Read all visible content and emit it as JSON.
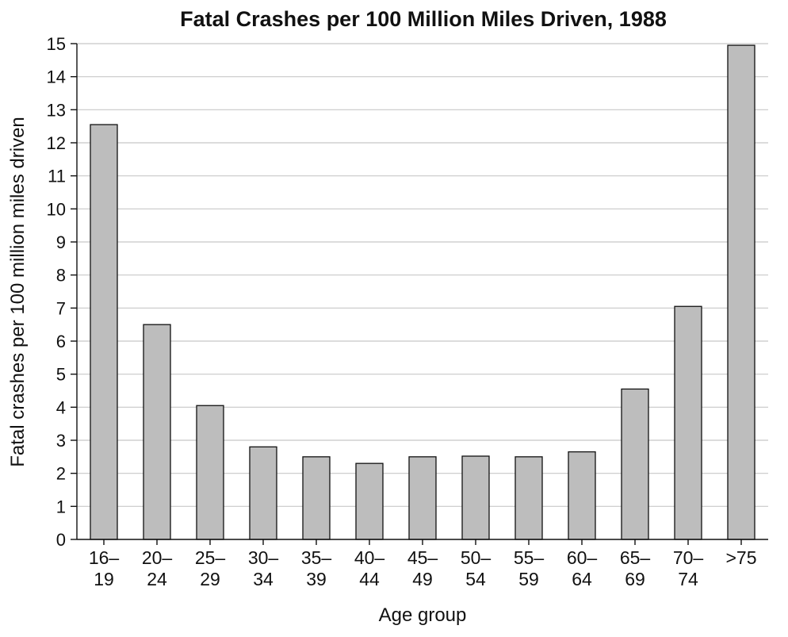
{
  "chart_data": {
    "type": "bar",
    "title": "Fatal Crashes per 100 Million Miles Driven, 1988",
    "xlabel": "Age group",
    "ylabel": "Fatal crashes per 100 million miles driven",
    "categories": [
      [
        "16–",
        "19"
      ],
      [
        "20–",
        "24"
      ],
      [
        "25–",
        "29"
      ],
      [
        "30–",
        "34"
      ],
      [
        "35–",
        "39"
      ],
      [
        "40–",
        "44"
      ],
      [
        "45–",
        "49"
      ],
      [
        "50–",
        "54"
      ],
      [
        "55–",
        "59"
      ],
      [
        "60–",
        "64"
      ],
      [
        "65–",
        "69"
      ],
      [
        "70–",
        "74"
      ],
      [
        ">75"
      ]
    ],
    "values": [
      12.55,
      6.5,
      4.05,
      2.8,
      2.5,
      2.3,
      2.5,
      2.52,
      2.5,
      2.65,
      4.55,
      7.05,
      14.95
    ],
    "ylim": [
      0,
      15
    ],
    "yticks": [
      0,
      1,
      2,
      3,
      4,
      5,
      6,
      7,
      8,
      9,
      10,
      11,
      12,
      13,
      14,
      15
    ],
    "grid": true,
    "bar_color": "#bdbdbd",
    "edge_color": "#111111",
    "grid_color": "#c8c8c8"
  }
}
